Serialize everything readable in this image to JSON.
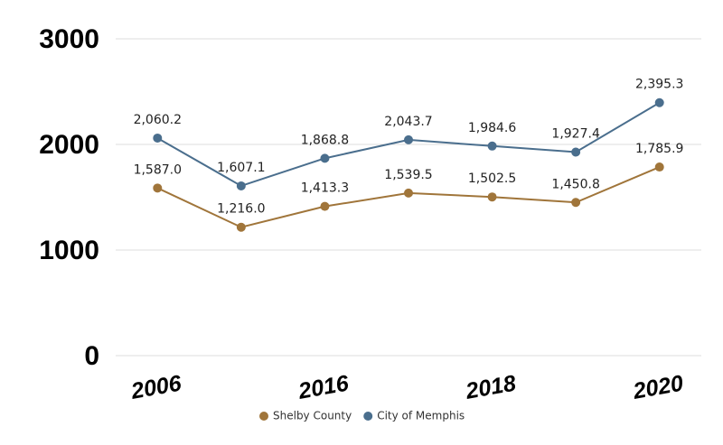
{
  "chart_data": {
    "type": "line",
    "categories": [
      "2006",
      null,
      "2016",
      null,
      "2018",
      null,
      "2020"
    ],
    "series": [
      {
        "name": "Shelby County",
        "color": "#a0753a",
        "values": [
          1587.0,
          1216.0,
          1413.3,
          1539.5,
          1502.5,
          1450.8,
          1785.9
        ],
        "value_labels": [
          "1,587.0",
          "1,216.0",
          "1,413.3",
          "1,539.5",
          "1,502.5",
          "1,450.8",
          "1,785.9"
        ]
      },
      {
        "name": "City of Memphis",
        "color": "#4a6e8d",
        "values": [
          2060.2,
          1607.1,
          1868.8,
          2043.7,
          1984.6,
          1927.4,
          2395.3
        ],
        "value_labels": [
          "2,060.2",
          "1,607.1",
          "1,868.8",
          "2,043.7",
          "1,984.6",
          "1,927.4",
          "2,395.3"
        ]
      }
    ],
    "ylim": [
      0,
      3000
    ],
    "yticks": [
      0,
      1000,
      2000,
      3000
    ],
    "grid": true,
    "legend": "bottom"
  }
}
